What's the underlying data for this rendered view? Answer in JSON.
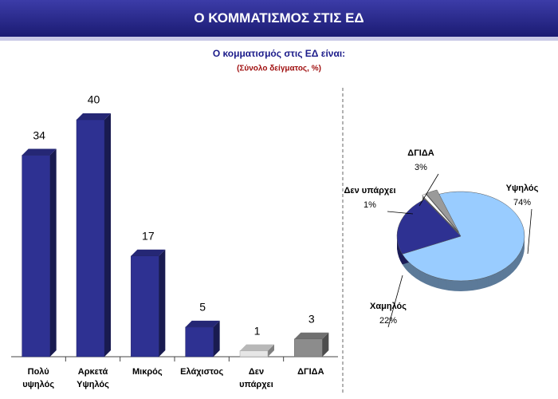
{
  "header": {
    "title": "Ο ΚΟΜΜΑΤΙΣΜΟΣ ΣΤΙΣ ΕΔ"
  },
  "chart_data": [
    {
      "type": "bar3d",
      "title": "Ο κομματισμός στις ΕΔ είναι:",
      "subtitle": "(Σύνολο δείγματος, %)",
      "categories": [
        "Πολύ\nυψηλός",
        "Αρκετά\nΥψηλός",
        "Μικρός",
        "Ελάχιστος",
        "Δεν\nυπάρχει",
        "ΔΓΙΔΑ"
      ],
      "values": [
        34,
        40,
        17,
        5,
        1,
        3
      ],
      "colors": [
        "#2e3192",
        "#2e3192",
        "#2e3192",
        "#2e3192",
        "#e6e6e6",
        "#8c8c8c"
      ]
    },
    {
      "type": "pie3d",
      "categories": [
        "Υψηλός",
        "Χαμηλός",
        "Δεν υπάρχει",
        "ΔΓΙΔΑ"
      ],
      "values": [
        74,
        22,
        1,
        3
      ],
      "value_labels": [
        "74%",
        "22%",
        "1%",
        "3%"
      ],
      "colors": [
        "#99ccff",
        "#2e3192",
        "#ffffff",
        "#9a9a9a"
      ]
    }
  ]
}
